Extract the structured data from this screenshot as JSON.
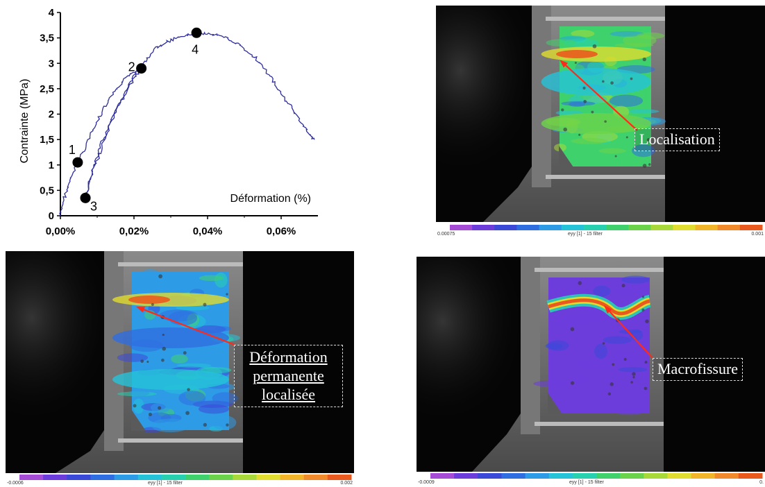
{
  "chart_data": {
    "type": "line",
    "xlabel": "Déformation (%)",
    "ylabel": "Contrainte (MPa)",
    "xlim": [
      0,
      0.07
    ],
    "ylim": [
      0,
      4
    ],
    "x_ticks": [
      "0,00%",
      "0,02%",
      "0,04%",
      "0,06%"
    ],
    "x_tick_values": [
      0,
      0.02,
      0.04,
      0.06
    ],
    "y_ticks": [
      "0",
      "0,5",
      "1",
      "1,5",
      "2",
      "2,5",
      "3",
      "3,5",
      "4"
    ],
    "y_tick_values": [
      0,
      0.5,
      1,
      1.5,
      2,
      2.5,
      3,
      3.5,
      4
    ],
    "grid": false,
    "series": [
      {
        "color": "#2e2e9a",
        "points": [
          [
            0.0,
            0.0
          ],
          [
            0.001,
            0.35
          ],
          [
            0.003,
            0.75
          ],
          [
            0.0047,
            1.05
          ],
          [
            0.007,
            1.4
          ],
          [
            0.01,
            1.85
          ],
          [
            0.013,
            2.25
          ],
          [
            0.016,
            2.55
          ],
          [
            0.019,
            2.8
          ],
          [
            0.022,
            2.9
          ],
          [
            0.02,
            2.7
          ],
          [
            0.017,
            2.3
          ],
          [
            0.014,
            1.9
          ],
          [
            0.011,
            1.4
          ],
          [
            0.009,
            0.95
          ],
          [
            0.0068,
            0.35
          ],
          [
            0.0085,
            0.8
          ],
          [
            0.011,
            1.3
          ],
          [
            0.014,
            1.85
          ],
          [
            0.017,
            2.35
          ],
          [
            0.02,
            2.75
          ],
          [
            0.023,
            3.05
          ],
          [
            0.026,
            3.3
          ],
          [
            0.03,
            3.45
          ],
          [
            0.034,
            3.55
          ],
          [
            0.037,
            3.6
          ],
          [
            0.041,
            3.58
          ],
          [
            0.045,
            3.5
          ],
          [
            0.049,
            3.35
          ],
          [
            0.053,
            3.1
          ],
          [
            0.057,
            2.75
          ],
          [
            0.06,
            2.4
          ],
          [
            0.063,
            2.1
          ],
          [
            0.066,
            1.8
          ],
          [
            0.068,
            1.55
          ],
          [
            0.069,
            1.5
          ]
        ]
      }
    ],
    "markers": [
      {
        "label": "1",
        "x": 0.0047,
        "y": 1.05
      },
      {
        "label": "2",
        "x": 0.022,
        "y": 2.9
      },
      {
        "label": "3",
        "x": 0.0068,
        "y": 0.35
      },
      {
        "label": "4",
        "x": 0.037,
        "y": 3.6
      }
    ]
  },
  "panels": [
    {
      "id": "localisation",
      "callout": "Localisation",
      "colorbar": {
        "min": "0.00075",
        "max": "0.001",
        "label": "eyy [1] - 15 filter"
      }
    },
    {
      "id": "deformation",
      "callout_lines": [
        "Déformation",
        "permanente",
        "localisée"
      ],
      "colorbar": {
        "min": "-0.0006",
        "max": "0.002",
        "label": "eyy [1] - 15 filter"
      }
    },
    {
      "id": "macrofissure",
      "callout": "Macrofissure",
      "colorbar": {
        "min": "-0.0009",
        "max": "0.",
        "label": "eyy [1] - 15 filter"
      }
    }
  ],
  "colors": {
    "curve": "#2e2e9a",
    "arrow": "#ff2a1a",
    "colormap": [
      "#a64bd6",
      "#6d3ddc",
      "#3b49d9",
      "#2f6ee0",
      "#2d9be6",
      "#25c3d8",
      "#27d1b0",
      "#3fd26c",
      "#6bd34a",
      "#a8d83a",
      "#e0dc30",
      "#f2b52a",
      "#f08a2a",
      "#ea5a1e"
    ]
  }
}
